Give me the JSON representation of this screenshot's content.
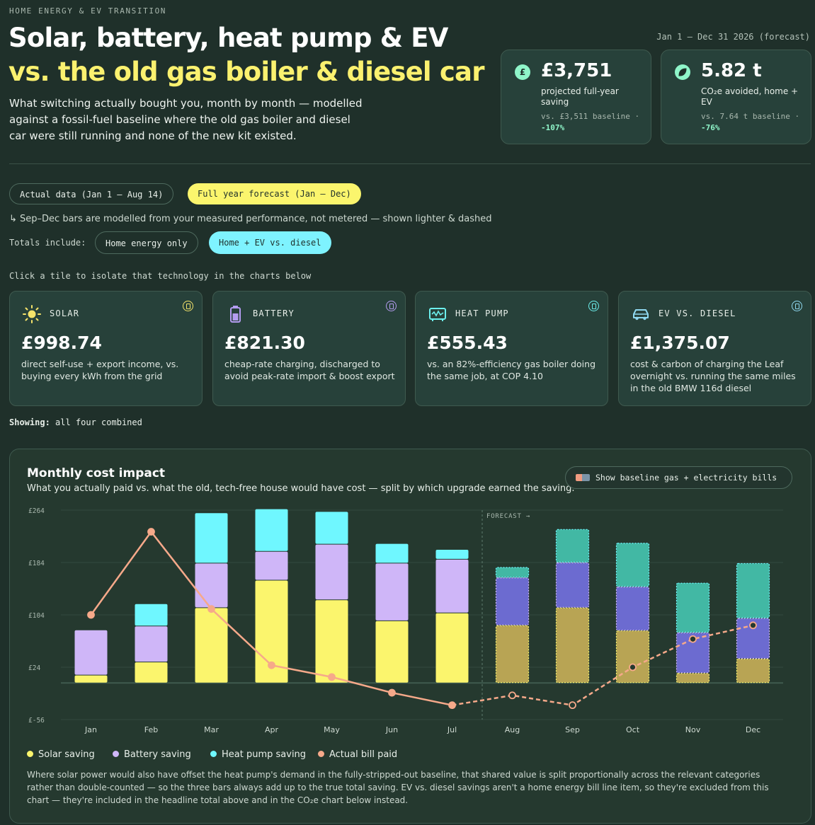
{
  "header": {
    "kicker": "HOME ENERGY & EV TRANSITION",
    "title_line1": "Solar, battery, heat pump & EV",
    "title_line2": "vs. the old gas boiler & diesel car",
    "subtitle": "What switching actually bought you, month by month — modelled against a fossil-fuel baseline where the old gas boiler and diesel car were still running and none of the new kit existed.",
    "date_range": "Jan 1 – Dec 31 2026 (forecast)"
  },
  "stats": [
    {
      "icon": "pound-icon",
      "value": "£3,751",
      "label": "projected full-year saving",
      "baseline": "vs. £3,511 baseline ·",
      "change": "-107%"
    },
    {
      "icon": "leaf-icon",
      "value": "5.82 t",
      "label": "CO₂e avoided, home + EV",
      "baseline": "vs. 7.64 t baseline ·",
      "change": "-76%"
    }
  ],
  "period_toggle": {
    "actual": "Actual data (Jan 1 – Aug 14)",
    "forecast": "Full year forecast (Jan – Dec)",
    "selected": "forecast"
  },
  "forecast_note": "↳ Sep–Dec bars are modelled from your measured performance, not metered — shown lighter & dashed",
  "totals": {
    "label": "Totals include:",
    "options": [
      "Home energy only",
      "Home + EV vs. diesel"
    ],
    "selected": "Home + EV vs. diesel"
  },
  "tiles_hint": "Click a tile to isolate that technology in the charts below",
  "tiles": [
    {
      "name": "SOLAR",
      "icon": "sun-icon",
      "value": "£998.74",
      "desc": "direct self-use + export income, vs. buying every kWh from the grid",
      "color": "#f5e36a"
    },
    {
      "name": "BATTERY",
      "icon": "battery-icon",
      "value": "£821.30",
      "desc": "cheap-rate charging, discharged to avoid peak-rate import & boost export",
      "color": "#b49cf0"
    },
    {
      "name": "HEAT PUMP",
      "icon": "heat-pump-icon",
      "value": "£555.43",
      "desc": "vs. an 82%-efficiency gas boiler doing the same job, at COP 4.10",
      "color": "#6cf0ee"
    },
    {
      "name": "EV VS. DIESEL",
      "icon": "car-icon",
      "value": "£1,375.07",
      "desc": "cost & carbon of charging the Leaf overnight vs. running the same miles in the old BMW 116d diesel",
      "color": "#8fd8f0"
    }
  ],
  "showing": {
    "label": "Showing:",
    "value": "all four combined"
  },
  "chart_panel": {
    "title": "Monthly cost impact",
    "subtitle": "What you actually paid vs. what the old, tech-free house would have cost — split by which upgrade earned the saving.",
    "baseline_button": "Show baseline gas + electricity bills",
    "forecast_marker": "FORECAST →",
    "footnote": "Where solar power would also have offset the heat pump's demand in the fully-stripped-out baseline, that shared value is split proportionally across the relevant categories rather than double-counted — so the three bars always add up to the true total saving. EV vs. diesel savings aren't a home energy bill line item, so they're excluded from this chart — they're included in the headline total above and in the CO₂e chart below instead."
  },
  "chart_data": {
    "type": "bar",
    "stacked": true,
    "categories": [
      "Jan",
      "Feb",
      "Mar",
      "Apr",
      "May",
      "Jun",
      "Jul",
      "Aug",
      "Sep",
      "Oct",
      "Nov",
      "Dec"
    ],
    "y_ticks": [
      "£264",
      "£184",
      "£104",
      "£24",
      "£-56"
    ],
    "ylim": [
      -56,
      264
    ],
    "forecast_from_index": 7,
    "series": [
      {
        "name": "Solar saving",
        "color": "#fbf56d",
        "values": [
          12,
          32,
          115,
          157,
          127,
          95,
          107,
          88,
          115,
          80,
          15,
          37
        ]
      },
      {
        "name": "Battery saving",
        "color": "#cfb6f8",
        "values": [
          69,
          55,
          68,
          44,
          85,
          88,
          82,
          73,
          69,
          67,
          62,
          62
        ]
      },
      {
        "name": "Heat pump saving",
        "color": "#6ff7ff",
        "values": [
          0,
          34,
          77,
          65,
          50,
          30,
          15,
          16,
          51,
          67,
          76,
          84
        ]
      },
      {
        "name": "Actual bill paid",
        "type": "line",
        "color": "#f6a98a",
        "values": [
          104,
          231,
          113,
          27,
          9,
          -15,
          -34,
          -19,
          -34,
          24,
          67,
          88
        ]
      }
    ],
    "forecast_colors": [
      "#b8a454",
      "#6c6bd0",
      "#42b8a4"
    ]
  }
}
